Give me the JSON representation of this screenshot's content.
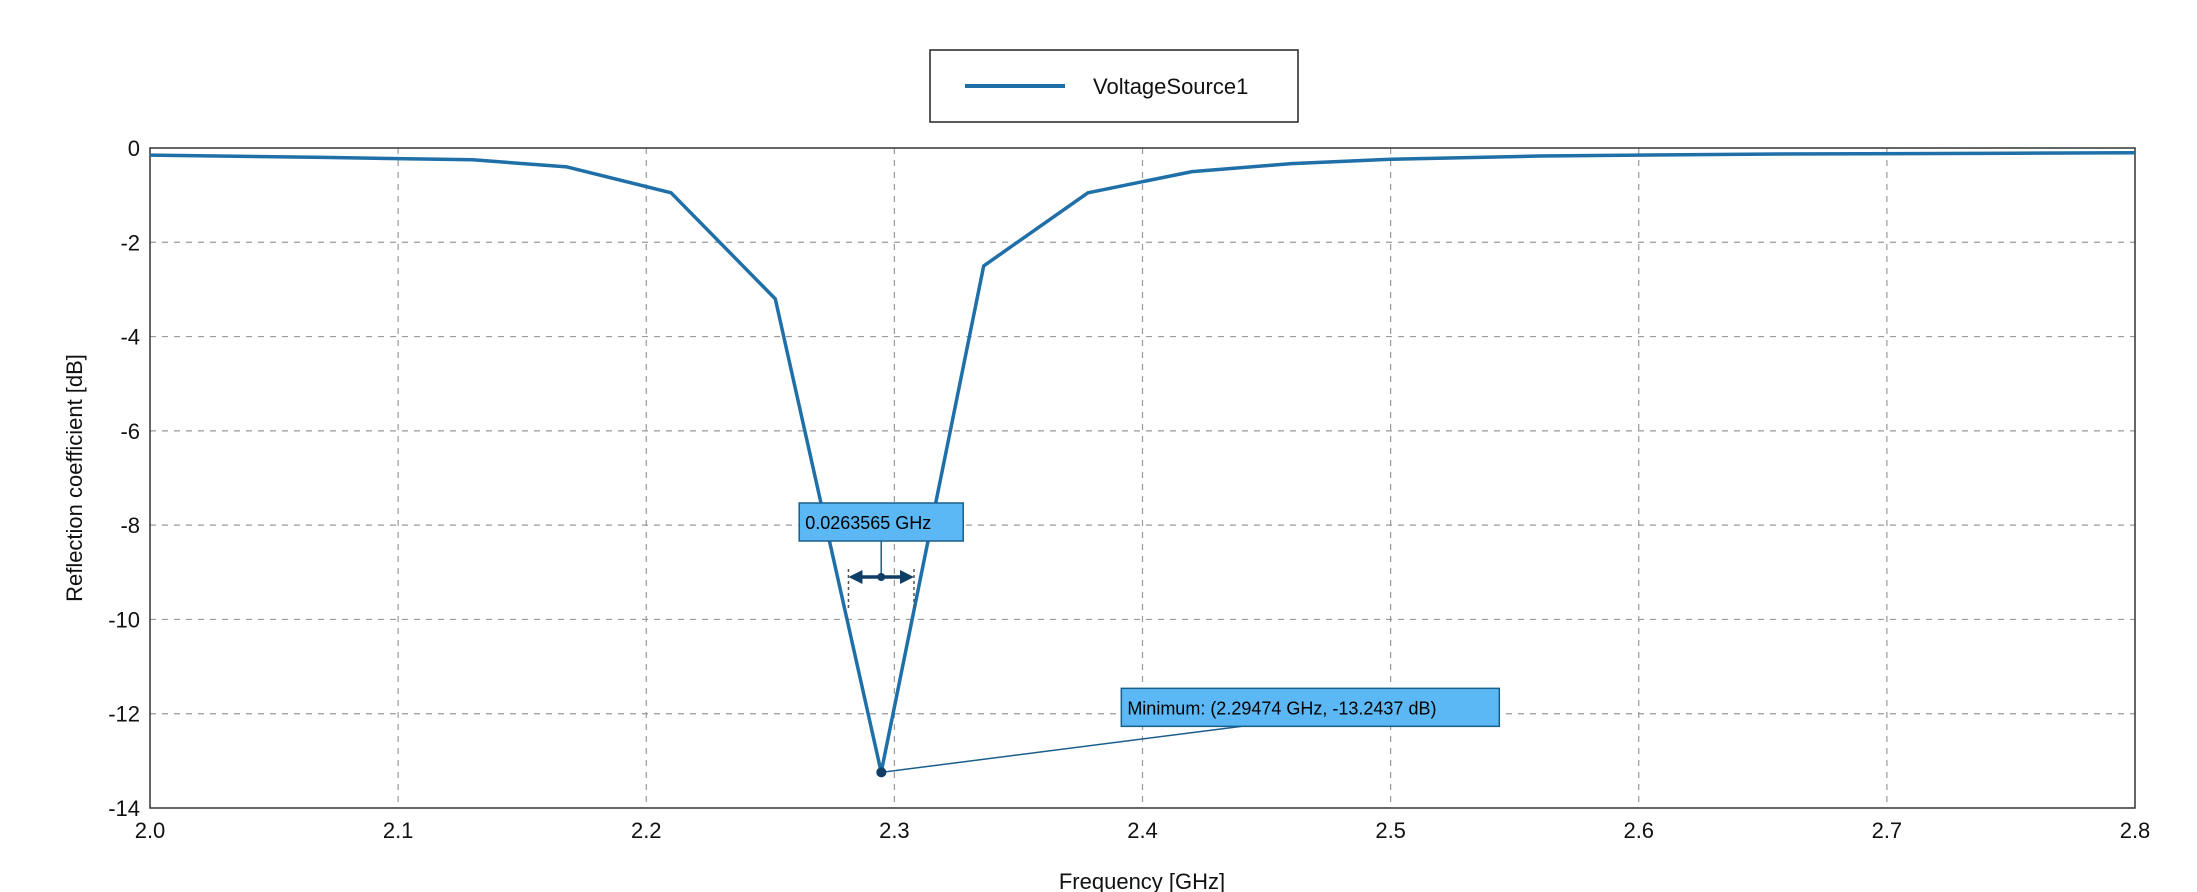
{
  "colors": {
    "series": "#1f6fa8",
    "annotation_fill": "#5bb8f5",
    "annotation_border": "#1a5e8c",
    "marker_dark": "#0e3d66",
    "grid": "#9a9a9a"
  },
  "chart_data": {
    "type": "line",
    "xlabel": "Frequency [GHz]",
    "ylabel": "Reflection coefficient [dB]",
    "xlim": [
      2.0,
      2.8
    ],
    "ylim": [
      -14,
      0
    ],
    "xticks": [
      "2.0",
      "2.1",
      "2.2",
      "2.3",
      "2.4",
      "2.5",
      "2.6",
      "2.7",
      "2.8"
    ],
    "yticks": [
      "0",
      "-2",
      "-4",
      "-6",
      "-8",
      "-10",
      "-12",
      "-14"
    ],
    "grid": true,
    "legend": {
      "position": "top-center"
    },
    "series": [
      {
        "name": "VoltageSource1",
        "x": [
          2.0,
          2.07,
          2.13,
          2.168,
          2.21,
          2.252,
          2.2947,
          2.336,
          2.378,
          2.42,
          2.46,
          2.5,
          2.56,
          2.65,
          2.75,
          2.8
        ],
        "y": [
          -0.15,
          -0.2,
          -0.25,
          -0.4,
          -0.95,
          -3.2,
          -13.24,
          -2.5,
          -0.95,
          -0.5,
          -0.33,
          -0.24,
          -0.17,
          -0.13,
          -0.11,
          -0.1
        ]
      }
    ],
    "annotations": {
      "bandwidth": {
        "label": "0.0263565 GHz",
        "x_start": 2.2815,
        "x_end": 2.3079,
        "x_center": 2.2947,
        "y": -9.1
      },
      "minimum": {
        "label": "Minimum: (2.29474 GHz, -13.2437 dB)",
        "x": 2.29474,
        "y": -13.2437
      }
    }
  }
}
